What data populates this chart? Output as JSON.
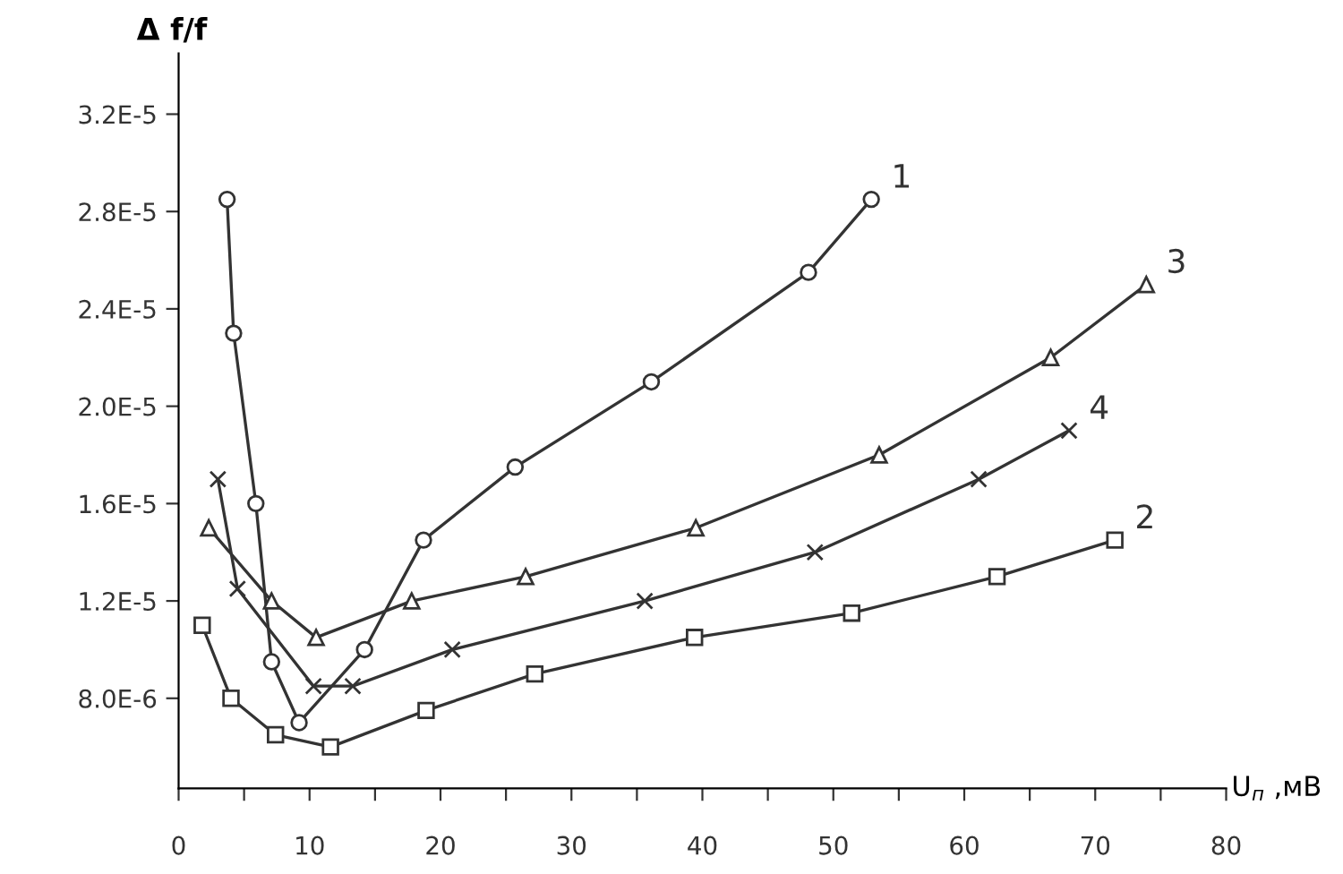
{
  "chart_data": {
    "type": "line",
    "ylabel": "Δ f/f",
    "xlabel": "U$_{п}$ ,мВ",
    "xlim": [
      0,
      80
    ],
    "ylim": [
      4.3e-06,
      3.45e-05
    ],
    "xticks": [
      0,
      {
        "value": 5,
        "label": null
      },
      10,
      {
        "value": 15,
        "label": null
      },
      20,
      {
        "value": 25,
        "label": null
      },
      30,
      {
        "value": 35,
        "label": null
      },
      40,
      {
        "value": 45,
        "label": null
      },
      50,
      {
        "value": 55,
        "label": null
      },
      60,
      {
        "value": 65,
        "label": null
      },
      70,
      {
        "value": 75,
        "label": null
      },
      80
    ],
    "yticks": [
      {
        "value": 8e-06,
        "label": "8.0E-6"
      },
      {
        "value": 1.2e-05,
        "label": "1.2E-5"
      },
      {
        "value": 1.6e-05,
        "label": "1.6E-5"
      },
      {
        "value": 2e-05,
        "label": "2.0E-5"
      },
      {
        "value": 2.4e-05,
        "label": "2.4E-5"
      },
      {
        "value": 2.8e-05,
        "label": "2.8E-5"
      },
      {
        "value": 3.2e-05,
        "label": "3.2E-5"
      }
    ],
    "grid": false,
    "legend": false,
    "line_style": "solid",
    "series": [
      {
        "name": "1",
        "color": "#333333",
        "marker": "circle",
        "x": [
          3.7,
          4.2,
          5.9,
          7.1,
          9.2,
          14.2,
          18.7,
          25.7,
          36.1,
          48.1,
          52.9
        ],
        "values": [
          2.85e-05,
          2.3e-05,
          1.6e-05,
          9.5e-06,
          7e-06,
          1e-05,
          1.45e-05,
          1.75e-05,
          2.1e-05,
          2.55e-05,
          2.85e-05
        ]
      },
      {
        "name": "2",
        "color": "#333333",
        "marker": "square",
        "x": [
          1.8,
          4.0,
          7.4,
          11.6,
          18.9,
          27.2,
          39.4,
          51.4,
          62.5,
          71.5
        ],
        "values": [
          1.1e-05,
          8e-06,
          6.5e-06,
          6e-06,
          7.5e-06,
          9e-06,
          1.05e-05,
          1.15e-05,
          1.3e-05,
          1.45e-05
        ]
      },
      {
        "name": "3",
        "color": "#333333",
        "marker": "triangle",
        "x": [
          2.3,
          7.1,
          10.5,
          17.8,
          26.5,
          39.5,
          53.5,
          66.6,
          73.9
        ],
        "values": [
          1.5e-05,
          1.2e-05,
          1.05e-05,
          1.2e-05,
          1.3e-05,
          1.5e-05,
          1.8e-05,
          2.2e-05,
          2.5e-05
        ]
      },
      {
        "name": "4",
        "color": "#333333",
        "marker": "cross",
        "x": [
          3.0,
          4.5,
          10.3,
          13.3,
          20.9,
          35.6,
          48.6,
          61.1,
          68.0
        ],
        "values": [
          1.7e-05,
          1.25e-05,
          8.5e-06,
          8.5e-06,
          1e-05,
          1.2e-05,
          1.4e-05,
          1.7e-05,
          1.9e-05
        ]
      }
    ]
  }
}
